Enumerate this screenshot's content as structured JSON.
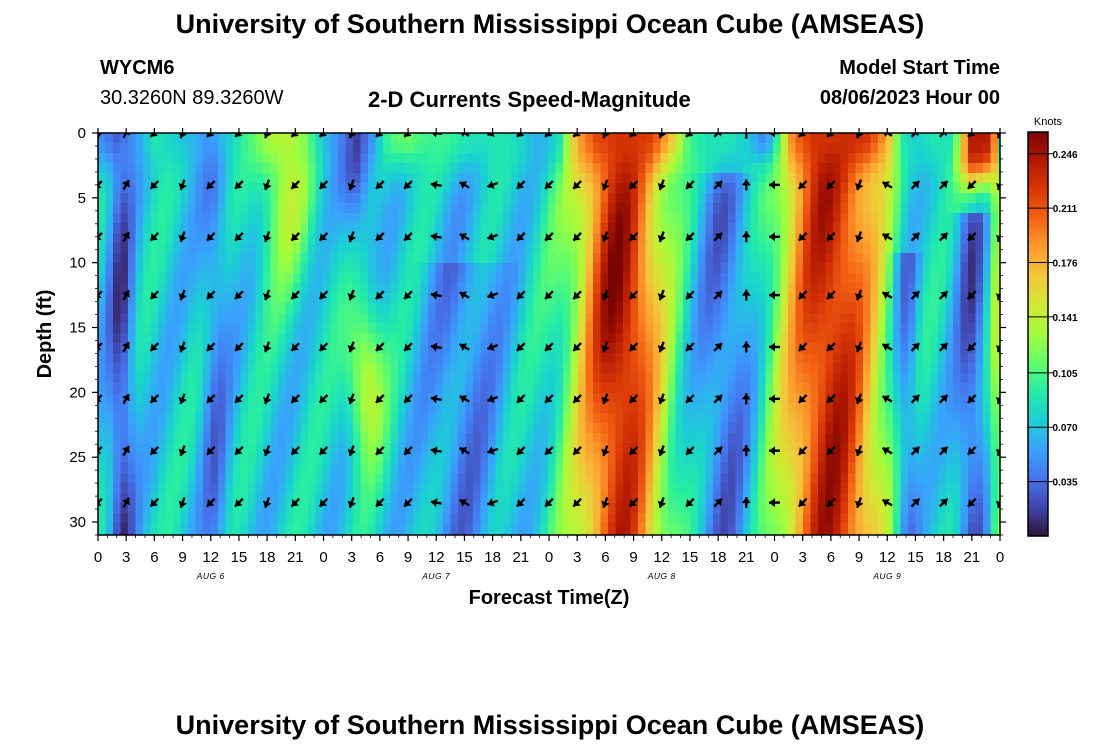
{
  "header": {
    "title": "University of Southern Mississippi Ocean Cube (AMSEAS)",
    "station_id": "WYCM6",
    "coords": "30.3260N  89.3260W",
    "subtitle": "2-D Currents Speed-Magnitude",
    "model_start_label": "Model Start Time",
    "model_start_value": "08/06/2023 Hour 00"
  },
  "footer": {
    "title": "University of Southern Mississippi Ocean Cube (AMSEAS)"
  },
  "colorbar": {
    "unit": "Knots",
    "ticks": [
      0.035,
      0.07,
      0.105,
      0.141,
      0.176,
      0.211,
      0.246
    ],
    "tick_labels": [
      "0.035",
      "0.070",
      "0.105",
      "0.141",
      "0.176",
      "0.211",
      "0.246"
    ],
    "range": [
      0.0,
      0.26
    ],
    "colors": [
      "#30123b",
      "#4145ab",
      "#4675ed",
      "#39a2fc",
      "#1bcfd4",
      "#24eca6",
      "#61fc6c",
      "#a4fc3b",
      "#d1e834",
      "#f3c63a",
      "#fe9b2d",
      "#f36315",
      "#d93806",
      "#b11901",
      "#7a0403"
    ]
  },
  "chart_data": {
    "type": "heatmap",
    "title": "2-D Currents Speed-Magnitude",
    "xlabel": "Forecast Time(Z)",
    "ylabel": "Depth (ft)",
    "x_unit": "hours since 2023-08-06 00Z",
    "xlim": [
      0,
      96
    ],
    "ylim": [
      31,
      0
    ],
    "x_ticks": [
      0,
      3,
      6,
      9,
      12,
      15,
      18,
      21,
      24,
      27,
      30,
      33,
      36,
      39,
      42,
      45,
      48,
      51,
      54,
      57,
      60,
      63,
      66,
      69,
      72,
      75,
      78,
      81,
      84,
      87,
      90,
      93,
      96
    ],
    "x_tick_labels": [
      "0",
      "3",
      "6",
      "9",
      "12",
      "15",
      "18",
      "21",
      "0",
      "3",
      "6",
      "9",
      "12",
      "15",
      "18",
      "21",
      "0",
      "3",
      "6",
      "9",
      "12",
      "15",
      "18",
      "21",
      "0",
      "3",
      "6",
      "9",
      "12",
      "15",
      "18",
      "21",
      "0"
    ],
    "day_labels": [
      {
        "x": 12,
        "label": "AUG 6"
      },
      {
        "x": 36,
        "label": "AUG 7"
      },
      {
        "x": 60,
        "label": "AUG 8"
      },
      {
        "x": 84,
        "label": "AUG 9"
      }
    ],
    "y_ticks": [
      0,
      5,
      10,
      15,
      20,
      25,
      30
    ],
    "y_tick_labels": [
      "0",
      "5",
      "10",
      "15",
      "20",
      "25",
      "30"
    ],
    "unit": "Knots",
    "value_range": [
      0.0,
      0.26
    ],
    "speed_regions_hours": [
      {
        "from": 1,
        "to": 4,
        "speed": 0.03,
        "depth": "0-31 (strongest below 13 ft)"
      },
      {
        "from": 11,
        "to": 14,
        "speed": 0.05,
        "depth": "0-31"
      },
      {
        "from": 17,
        "to": 23,
        "speed": 0.13,
        "depth": "0-12"
      },
      {
        "from": 26,
        "to": 29,
        "speed": 0.03,
        "depth": "0-8"
      },
      {
        "from": 28,
        "to": 30,
        "speed": 0.15,
        "depth": "12-25"
      },
      {
        "from": 36,
        "to": 42,
        "speed": 0.05,
        "depth": "10-31"
      },
      {
        "from": 50,
        "to": 60,
        "speed": 0.22,
        "depth": "0-31"
      },
      {
        "from": 64,
        "to": 70,
        "speed": 0.05,
        "depth": "2-31"
      },
      {
        "from": 72,
        "to": 84,
        "speed": 0.23,
        "depth": "0-31"
      },
      {
        "from": 85,
        "to": 87,
        "speed": 0.03,
        "depth": "10-31"
      },
      {
        "from": 92,
        "to": 95,
        "speed": 0.21,
        "depth": "0-3"
      }
    ],
    "vector_times_hours": [
      0,
      3,
      6,
      9,
      12,
      15,
      18,
      21,
      24,
      27,
      30,
      33,
      36,
      39,
      42,
      45,
      48,
      51,
      54,
      57,
      60,
      63,
      66,
      69,
      72,
      75,
      78,
      81,
      84,
      87,
      90,
      93,
      96
    ],
    "vector_depths_ft": [
      0,
      4,
      8,
      12.5,
      16.5,
      20.5,
      24.5,
      28.5
    ],
    "vector_direction_deg_by_time": [
      225,
      30,
      225,
      200,
      225,
      225,
      200,
      225,
      225,
      200,
      225,
      225,
      280,
      300,
      250,
      225,
      225,
      225,
      200,
      225,
      200,
      225,
      45,
      0,
      270,
      225,
      225,
      200,
      300,
      45,
      45,
      225,
      200
    ]
  }
}
